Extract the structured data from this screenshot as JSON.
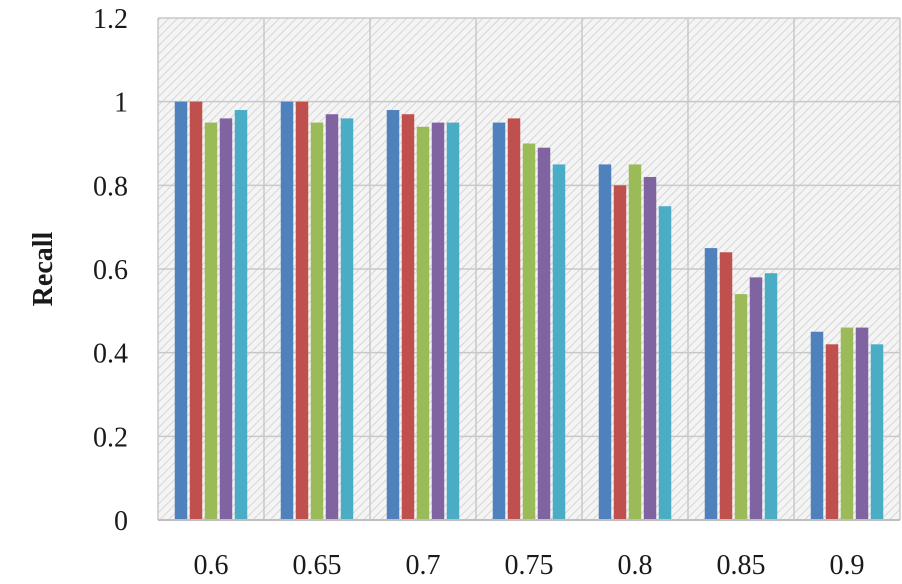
{
  "chart_data": {
    "type": "bar",
    "title": "",
    "xlabel": "",
    "ylabel": "Recall",
    "ylim": [
      0,
      1.2
    ],
    "yticks": [
      "0",
      "0.2",
      "0.4",
      "0.6",
      "0.8",
      "1",
      "1.2"
    ],
    "categories": [
      "0.6",
      "0.65",
      "0.7",
      "0.75",
      "0.8",
      "0.85",
      "0.9"
    ],
    "grid": true,
    "legend": "none",
    "plot_background": "hatched light gray",
    "series": [
      {
        "color": "#4F81BD",
        "values": [
          1.0,
          1.0,
          0.98,
          0.95,
          0.85,
          0.65,
          0.45
        ]
      },
      {
        "color": "#C0504D",
        "values": [
          1.0,
          1.0,
          0.97,
          0.96,
          0.8,
          0.64,
          0.42
        ]
      },
      {
        "color": "#9BBB59",
        "values": [
          0.95,
          0.95,
          0.94,
          0.9,
          0.85,
          0.54,
          0.46
        ]
      },
      {
        "color": "#8064A2",
        "values": [
          0.96,
          0.97,
          0.95,
          0.89,
          0.82,
          0.58,
          0.46
        ]
      },
      {
        "color": "#4BACC6",
        "values": [
          0.98,
          0.96,
          0.95,
          0.85,
          0.75,
          0.59,
          0.42
        ]
      }
    ]
  }
}
